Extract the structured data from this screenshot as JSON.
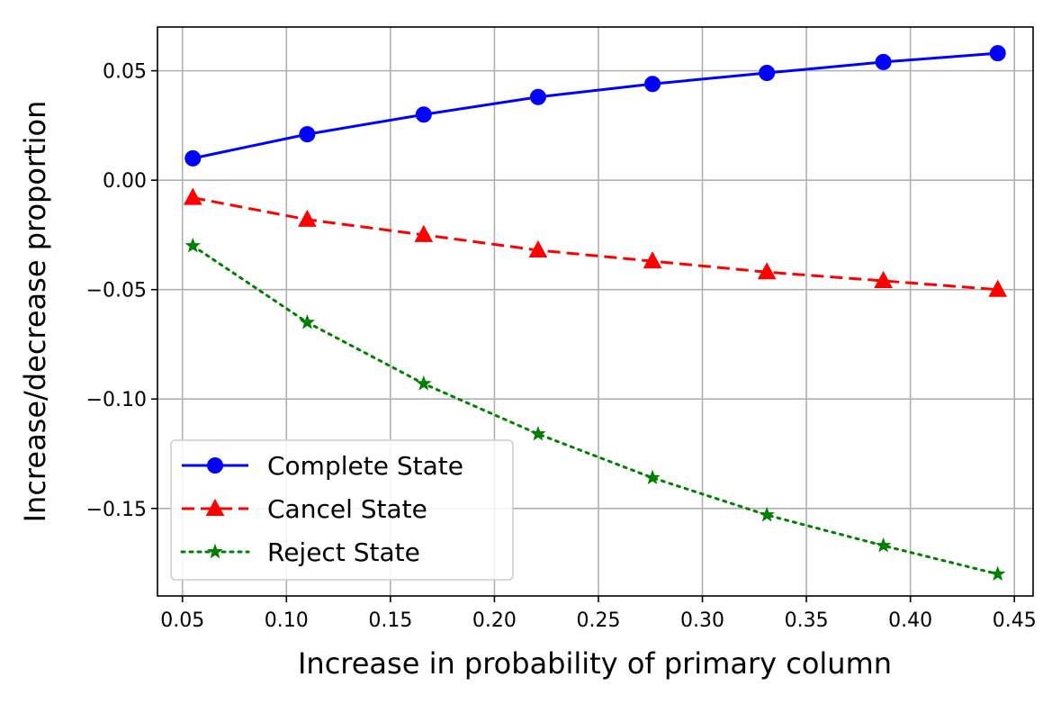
{
  "chart_data": {
    "type": "line",
    "title": "",
    "xlabel": "Increase in probability of primary column",
    "ylabel": "Increase/decrease proportion",
    "xlim": [
      0.038,
      0.459
    ],
    "ylim": [
      -0.19,
      0.07
    ],
    "x_ticks": [
      0.05,
      0.1,
      0.15,
      0.2,
      0.25,
      0.3,
      0.35,
      0.4,
      0.45
    ],
    "x_tick_labels": [
      "0.05",
      "0.10",
      "0.15",
      "0.20",
      "0.25",
      "0.30",
      "0.35",
      "0.40",
      "0.45"
    ],
    "y_ticks": [
      0.05,
      0.0,
      -0.05,
      -0.1,
      -0.15
    ],
    "y_tick_labels": [
      "0.05",
      "0.00",
      "−0.05",
      "−0.10",
      "−0.15"
    ],
    "grid": true,
    "legend_position": "lower-left",
    "x": [
      0.055,
      0.11,
      0.166,
      0.221,
      0.276,
      0.331,
      0.387,
      0.442
    ],
    "series": [
      {
        "name": "Complete State",
        "values": [
          0.01,
          0.021,
          0.03,
          0.038,
          0.044,
          0.049,
          0.054,
          0.058
        ],
        "color": "#0000ff",
        "line_style": "solid",
        "marker": "circle"
      },
      {
        "name": "Cancel State",
        "values": [
          -0.008,
          -0.018,
          -0.025,
          -0.032,
          -0.037,
          -0.042,
          -0.046,
          -0.05
        ],
        "color": "#ff0000",
        "line_style": "dashed",
        "marker": "triangle"
      },
      {
        "name": "Reject State",
        "values": [
          -0.03,
          -0.065,
          -0.093,
          -0.116,
          -0.136,
          -0.153,
          -0.167,
          -0.18
        ],
        "color": "#008000",
        "line_style": "dotted",
        "marker": "star"
      }
    ]
  }
}
